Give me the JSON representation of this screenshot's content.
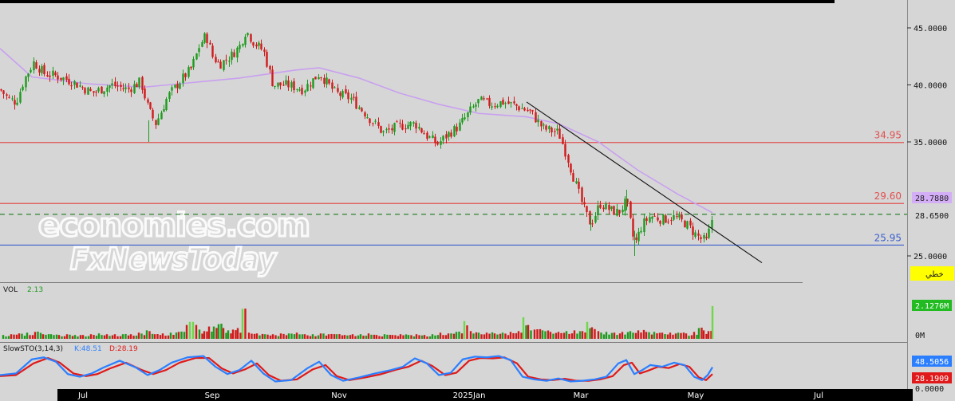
{
  "panels": {
    "volume_label": "VOL",
    "volume_value": "2.13",
    "stoch_label": "SlowSTO(3,14,3)",
    "stoch_k_text": "K:48.51",
    "stoch_d_text": "D:28.19"
  },
  "badges": {
    "ma_value": "28.7880",
    "last_price": "28.6500",
    "line_tool": "خطي",
    "volume_last": "2.1276M",
    "volume_zero": "0M",
    "stoch_k": "48.5056",
    "stoch_d": "28.1909",
    "stoch_zero": "0.0000"
  },
  "watermark": {
    "line1": "economies.com",
    "line2": "FxNewsToday"
  },
  "colors": {
    "background": "#d6d6d6",
    "up_candle": "#1d9a1d",
    "down_candle": "#d01a1a",
    "moving_average": "#c9a0f0",
    "resistance": "#e05050",
    "support": "#3a5fcd",
    "last_price_line": "#1a7a1a",
    "stoch_k": "#2b7fff",
    "stoch_d": "#e01a1a",
    "axis_bar": "#000000"
  },
  "chart_data": [
    {
      "type": "candlestick",
      "title": "",
      "ylim": [
        23.5,
        46.5
      ],
      "y_ticks": [
        "45.0000",
        "40.0000",
        "35.0000",
        "25.0000"
      ],
      "x_labels": [
        "Jul",
        "Sep",
        "Nov",
        "2025Jan",
        "Mar",
        "May",
        "Jul"
      ],
      "price_path": [
        {
          "x": 0,
          "y": 39.6
        },
        {
          "x": 10,
          "y": 38.8
        },
        {
          "x": 20,
          "y": 38.5
        },
        {
          "x": 30,
          "y": 40.5
        },
        {
          "x": 42,
          "y": 42.0
        },
        {
          "x": 55,
          "y": 41.0
        },
        {
          "x": 70,
          "y": 40.8
        },
        {
          "x": 90,
          "y": 40.3
        },
        {
          "x": 115,
          "y": 39.3
        },
        {
          "x": 140,
          "y": 40.0
        },
        {
          "x": 160,
          "y": 39.6
        },
        {
          "x": 176,
          "y": 40.3
        },
        {
          "x": 186,
          "y": 37.8
        },
        {
          "x": 195,
          "y": 36.6
        },
        {
          "x": 210,
          "y": 39.0
        },
        {
          "x": 225,
          "y": 40.3
        },
        {
          "x": 240,
          "y": 41.5
        },
        {
          "x": 250,
          "y": 43.5
        },
        {
          "x": 258,
          "y": 44.4
        },
        {
          "x": 266,
          "y": 42.5
        },
        {
          "x": 275,
          "y": 41.8
        },
        {
          "x": 290,
          "y": 42.6
        },
        {
          "x": 300,
          "y": 43.4
        },
        {
          "x": 308,
          "y": 44.8
        },
        {
          "x": 318,
          "y": 43.7
        },
        {
          "x": 330,
          "y": 43.0
        },
        {
          "x": 342,
          "y": 40.0
        },
        {
          "x": 360,
          "y": 40.0
        },
        {
          "x": 380,
          "y": 39.6
        },
        {
          "x": 400,
          "y": 41.0
        },
        {
          "x": 420,
          "y": 39.3
        },
        {
          "x": 440,
          "y": 38.8
        },
        {
          "x": 460,
          "y": 37.3
        },
        {
          "x": 480,
          "y": 35.8
        },
        {
          "x": 500,
          "y": 36.4
        },
        {
          "x": 520,
          "y": 36.6
        },
        {
          "x": 535,
          "y": 35.5
        },
        {
          "x": 548,
          "y": 34.8
        },
        {
          "x": 560,
          "y": 35.6
        },
        {
          "x": 575,
          "y": 36.4
        },
        {
          "x": 590,
          "y": 37.8
        },
        {
          "x": 600,
          "y": 38.6
        },
        {
          "x": 615,
          "y": 38.3
        },
        {
          "x": 630,
          "y": 38.5
        },
        {
          "x": 645,
          "y": 38.2
        },
        {
          "x": 665,
          "y": 37.6
        },
        {
          "x": 680,
          "y": 36.2
        },
        {
          "x": 700,
          "y": 35.8
        },
        {
          "x": 710,
          "y": 33.8
        },
        {
          "x": 720,
          "y": 31.6
        },
        {
          "x": 730,
          "y": 29.4
        },
        {
          "x": 740,
          "y": 27.8
        },
        {
          "x": 752,
          "y": 29.6
        },
        {
          "x": 765,
          "y": 29.0
        },
        {
          "x": 775,
          "y": 28.8
        },
        {
          "x": 785,
          "y": 29.8
        },
        {
          "x": 795,
          "y": 26.0
        },
        {
          "x": 805,
          "y": 27.8
        },
        {
          "x": 815,
          "y": 28.5
        },
        {
          "x": 830,
          "y": 28.2
        },
        {
          "x": 845,
          "y": 28.4
        },
        {
          "x": 860,
          "y": 27.8
        },
        {
          "x": 870,
          "y": 27.0
        },
        {
          "x": 878,
          "y": 26.5
        },
        {
          "x": 885,
          "y": 26.3
        },
        {
          "x": 890,
          "y": 27.5
        },
        {
          "x": 893,
          "y": 28.65
        }
      ]
    },
    {
      "type": "line",
      "title": "moving-average",
      "points": [
        {
          "x": 0,
          "y": 43.2
        },
        {
          "x": 40,
          "y": 40.7
        },
        {
          "x": 110,
          "y": 40.1
        },
        {
          "x": 180,
          "y": 39.8
        },
        {
          "x": 240,
          "y": 40.2
        },
        {
          "x": 300,
          "y": 40.6
        },
        {
          "x": 340,
          "y": 41.0
        },
        {
          "x": 370,
          "y": 41.3
        },
        {
          "x": 400,
          "y": 41.5
        },
        {
          "x": 450,
          "y": 40.6
        },
        {
          "x": 500,
          "y": 39.3
        },
        {
          "x": 550,
          "y": 38.3
        },
        {
          "x": 600,
          "y": 37.5
        },
        {
          "x": 660,
          "y": 37.2
        },
        {
          "x": 700,
          "y": 36.6
        },
        {
          "x": 750,
          "y": 35.0
        },
        {
          "x": 800,
          "y": 32.5
        },
        {
          "x": 850,
          "y": 30.4
        },
        {
          "x": 893,
          "y": 28.79
        }
      ]
    },
    {
      "type": "line",
      "title": "trendline",
      "points": [
        {
          "x": 660,
          "y": 38.5
        },
        {
          "x": 955,
          "y": 24.4
        }
      ]
    },
    {
      "type": "hlines",
      "levels": [
        {
          "value": 34.95,
          "label": "34.95"
        },
        {
          "value": 29.6,
          "label": "29.60"
        },
        {
          "value": 25.95,
          "label": "25.95"
        },
        {
          "value": 28.65,
          "label": "",
          "style": "dashed"
        }
      ]
    },
    {
      "type": "bar",
      "title": "volume",
      "ylim": [
        0,
        2.4
      ],
      "x": [
        4,
        14,
        24,
        34,
        44,
        54,
        64,
        74,
        84,
        94,
        104,
        114,
        124,
        134,
        144,
        154,
        164,
        174,
        184,
        194,
        204,
        214,
        224,
        234,
        238,
        242,
        246,
        250,
        256,
        262,
        268,
        274,
        280,
        286,
        292,
        298,
        304,
        312,
        322,
        332,
        342,
        352,
        362,
        372,
        382,
        392,
        402,
        412,
        422,
        432,
        442,
        452,
        462,
        472,
        482,
        492,
        502,
        512,
        522,
        532,
        542,
        552,
        562,
        572,
        582,
        590,
        600,
        610,
        620,
        630,
        640,
        650,
        656,
        662,
        670,
        680,
        690,
        700,
        710,
        720,
        730,
        736,
        742,
        750,
        760,
        770,
        780,
        790,
        800,
        810,
        820,
        830,
        840,
        850,
        860,
        870,
        876,
        882,
        888,
        893
      ],
      "values": [
        0.25,
        0.3,
        0.35,
        0.4,
        0.45,
        0.3,
        0.3,
        0.25,
        0.3,
        0.25,
        0.25,
        0.3,
        0.35,
        0.3,
        0.3,
        0.3,
        0.3,
        0.4,
        0.55,
        0.3,
        0.35,
        0.4,
        0.45,
        0.9,
        1.1,
        1.1,
        0.9,
        0.6,
        0.5,
        0.8,
        0.8,
        0.95,
        0.7,
        0.55,
        0.6,
        0.7,
        1.95,
        0.4,
        0.35,
        0.3,
        0.3,
        0.35,
        0.35,
        0.4,
        0.3,
        0.3,
        0.35,
        0.3,
        0.3,
        0.25,
        0.3,
        0.3,
        0.35,
        0.25,
        0.3,
        0.25,
        0.3,
        0.25,
        0.3,
        0.25,
        0.3,
        0.4,
        0.35,
        0.45,
        1.15,
        0.5,
        0.4,
        0.4,
        0.35,
        0.4,
        0.45,
        0.5,
        1.4,
        0.9,
        0.6,
        0.55,
        0.45,
        0.45,
        0.5,
        0.55,
        0.5,
        1.1,
        0.75,
        0.5,
        0.45,
        0.4,
        0.45,
        0.5,
        0.55,
        0.45,
        0.45,
        0.4,
        0.4,
        0.4,
        0.35,
        0.45,
        0.7,
        0.55,
        0.5,
        2.13
      ]
    },
    {
      "type": "line",
      "title": "stochastic",
      "ylim": [
        0,
        100
      ],
      "series": [
        {
          "name": "K",
          "points": [
            {
              "x": 0,
              "y": 25
            },
            {
              "x": 20,
              "y": 30
            },
            {
              "x": 40,
              "y": 72
            },
            {
              "x": 55,
              "y": 78
            },
            {
              "x": 70,
              "y": 65
            },
            {
              "x": 85,
              "y": 28
            },
            {
              "x": 100,
              "y": 20
            },
            {
              "x": 115,
              "y": 30
            },
            {
              "x": 130,
              "y": 48
            },
            {
              "x": 150,
              "y": 68
            },
            {
              "x": 170,
              "y": 48
            },
            {
              "x": 185,
              "y": 25
            },
            {
              "x": 200,
              "y": 40
            },
            {
              "x": 215,
              "y": 62
            },
            {
              "x": 235,
              "y": 78
            },
            {
              "x": 255,
              "y": 82
            },
            {
              "x": 270,
              "y": 50
            },
            {
              "x": 285,
              "y": 28
            },
            {
              "x": 300,
              "y": 40
            },
            {
              "x": 315,
              "y": 68
            },
            {
              "x": 330,
              "y": 30
            },
            {
              "x": 345,
              "y": 6
            },
            {
              "x": 365,
              "y": 10
            },
            {
              "x": 385,
              "y": 45
            },
            {
              "x": 400,
              "y": 65
            },
            {
              "x": 415,
              "y": 25
            },
            {
              "x": 430,
              "y": 8
            },
            {
              "x": 450,
              "y": 18
            },
            {
              "x": 470,
              "y": 30
            },
            {
              "x": 490,
              "y": 40
            },
            {
              "x": 505,
              "y": 50
            },
            {
              "x": 520,
              "y": 75
            },
            {
              "x": 535,
              "y": 60
            },
            {
              "x": 550,
              "y": 25
            },
            {
              "x": 565,
              "y": 32
            },
            {
              "x": 580,
              "y": 72
            },
            {
              "x": 595,
              "y": 80
            },
            {
              "x": 610,
              "y": 78
            },
            {
              "x": 625,
              "y": 82
            },
            {
              "x": 640,
              "y": 70
            },
            {
              "x": 655,
              "y": 20
            },
            {
              "x": 670,
              "y": 12
            },
            {
              "x": 685,
              "y": 8
            },
            {
              "x": 700,
              "y": 15
            },
            {
              "x": 715,
              "y": 6
            },
            {
              "x": 730,
              "y": 8
            },
            {
              "x": 745,
              "y": 12
            },
            {
              "x": 760,
              "y": 20
            },
            {
              "x": 775,
              "y": 60
            },
            {
              "x": 785,
              "y": 70
            },
            {
              "x": 795,
              "y": 28
            },
            {
              "x": 805,
              "y": 40
            },
            {
              "x": 815,
              "y": 55
            },
            {
              "x": 830,
              "y": 50
            },
            {
              "x": 845,
              "y": 62
            },
            {
              "x": 858,
              "y": 55
            },
            {
              "x": 870,
              "y": 20
            },
            {
              "x": 880,
              "y": 10
            },
            {
              "x": 887,
              "y": 25
            },
            {
              "x": 893,
              "y": 48.51
            }
          ]
        },
        {
          "name": "D",
          "points": [
            {
              "x": 0,
              "y": 22
            },
            {
              "x": 20,
              "y": 25
            },
            {
              "x": 42,
              "y": 60
            },
            {
              "x": 60,
              "y": 76
            },
            {
              "x": 75,
              "y": 62
            },
            {
              "x": 92,
              "y": 30
            },
            {
              "x": 108,
              "y": 22
            },
            {
              "x": 122,
              "y": 28
            },
            {
              "x": 138,
              "y": 45
            },
            {
              "x": 158,
              "y": 62
            },
            {
              "x": 178,
              "y": 40
            },
            {
              "x": 192,
              "y": 28
            },
            {
              "x": 208,
              "y": 40
            },
            {
              "x": 225,
              "y": 62
            },
            {
              "x": 245,
              "y": 76
            },
            {
              "x": 262,
              "y": 76
            },
            {
              "x": 278,
              "y": 45
            },
            {
              "x": 292,
              "y": 30
            },
            {
              "x": 307,
              "y": 42
            },
            {
              "x": 322,
              "y": 60
            },
            {
              "x": 337,
              "y": 25
            },
            {
              "x": 352,
              "y": 8
            },
            {
              "x": 372,
              "y": 12
            },
            {
              "x": 392,
              "y": 42
            },
            {
              "x": 408,
              "y": 55
            },
            {
              "x": 422,
              "y": 22
            },
            {
              "x": 438,
              "y": 10
            },
            {
              "x": 458,
              "y": 18
            },
            {
              "x": 478,
              "y": 28
            },
            {
              "x": 498,
              "y": 42
            },
            {
              "x": 512,
              "y": 50
            },
            {
              "x": 528,
              "y": 68
            },
            {
              "x": 542,
              "y": 52
            },
            {
              "x": 558,
              "y": 25
            },
            {
              "x": 572,
              "y": 32
            },
            {
              "x": 588,
              "y": 68
            },
            {
              "x": 602,
              "y": 76
            },
            {
              "x": 618,
              "y": 75
            },
            {
              "x": 632,
              "y": 78
            },
            {
              "x": 648,
              "y": 60
            },
            {
              "x": 662,
              "y": 20
            },
            {
              "x": 678,
              "y": 12
            },
            {
              "x": 692,
              "y": 10
            },
            {
              "x": 708,
              "y": 14
            },
            {
              "x": 722,
              "y": 8
            },
            {
              "x": 738,
              "y": 8
            },
            {
              "x": 752,
              "y": 12
            },
            {
              "x": 768,
              "y": 22
            },
            {
              "x": 782,
              "y": 55
            },
            {
              "x": 792,
              "y": 62
            },
            {
              "x": 802,
              "y": 30
            },
            {
              "x": 812,
              "y": 38
            },
            {
              "x": 825,
              "y": 50
            },
            {
              "x": 838,
              "y": 46
            },
            {
              "x": 852,
              "y": 58
            },
            {
              "x": 864,
              "y": 50
            },
            {
              "x": 876,
              "y": 18
            },
            {
              "x": 885,
              "y": 10
            },
            {
              "x": 893,
              "y": 28.19
            }
          ]
        }
      ]
    }
  ]
}
